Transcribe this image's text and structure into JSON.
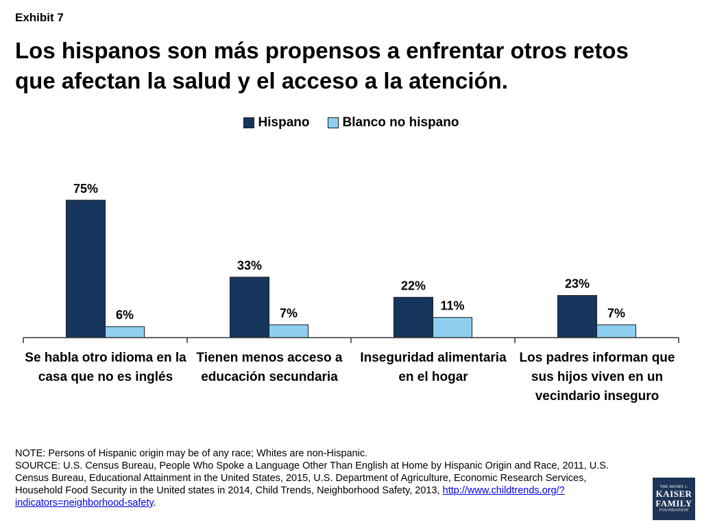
{
  "exhibit": "Exhibit 7",
  "title": "Los hispanos son más propensos a enfrentar otros retos que afectan la salud y el acceso a la atención.",
  "colors": {
    "hispano": "#17365d",
    "blanco": "#8ecff0",
    "axis": "#333333"
  },
  "chart_data": {
    "type": "bar",
    "title": "Los hispanos son más propensos a enfrentar otros retos que afectan la salud y el acceso a la atención.",
    "xlabel": "",
    "ylabel": "",
    "ylim": [
      0,
      100
    ],
    "grid": false,
    "legend_position": "top-center",
    "categories": [
      "Se habla otro idioma en la casa que no es inglés",
      "Tienen menos acceso a educación secundaria",
      "Inseguridad alimentaria en el hogar",
      "Los padres informan que sus hijos viven en un vecindario inseguro"
    ],
    "series": [
      {
        "name": "Hispano",
        "values": [
          75,
          33,
          22,
          23
        ],
        "labels": [
          "75%",
          "33%",
          "22%",
          "23%"
        ]
      },
      {
        "name": "Blanco no hispano",
        "values": [
          6,
          7,
          11,
          7
        ],
        "labels": [
          "6%",
          "7%",
          "11%",
          "7%"
        ]
      }
    ]
  },
  "footnote": {
    "note": "NOTE: Persons of Hispanic origin may be of any race; Whites are non-Hispanic.",
    "source": "SOURCE: U.S. Census Bureau, People Who Spoke a Language Other Than English at Home by Hispanic Origin and Race, 2011, U.S. Census Bureau, Educational Attainment in the United States, 2015, U.S. Department of Agriculture, Economic Research Services, Household Food Security in the United states in 2014, Child Trends, Neighborhood Safety, 2013,",
    "link": "http://www.childtrends.org/?indicators=neighborhood-safety",
    "link_suffix": "."
  },
  "logo": {
    "line1": "THE HENRY J.",
    "line2a": "KAISER",
    "line2b": "FAMILY",
    "line3": "FOUNDATION"
  }
}
